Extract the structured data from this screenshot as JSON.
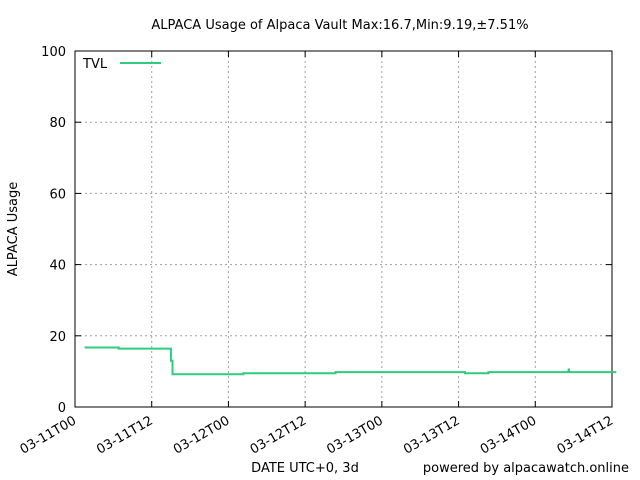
{
  "chart_data": {
    "type": "line",
    "title": "ALPACA Usage of Alpaca Vault Max:16.7,Min:9.19,±7.51%",
    "xlabel": "DATE UTC+0, 3d",
    "ylabel": "ALPACA Usage",
    "footer": "powered by alpacawatch.online",
    "ylim": [
      0,
      100
    ],
    "xlim": [
      "2021-03-11T00:00",
      "2021-03-14T12:00"
    ],
    "grid": true,
    "legend_position": "top-left",
    "x_ticks": [
      {
        "label": "03-11T00",
        "x": "2021-03-11T00:00"
      },
      {
        "label": "03-11T12",
        "x": "2021-03-11T12:00"
      },
      {
        "label": "03-12T00",
        "x": "2021-03-12T00:00"
      },
      {
        "label": "03-12T12",
        "x": "2021-03-12T12:00"
      },
      {
        "label": "03-13T00",
        "x": "2021-03-13T00:00"
      },
      {
        "label": "03-13T12",
        "x": "2021-03-13T12:00"
      },
      {
        "label": "03-14T00",
        "x": "2021-03-14T00:00"
      },
      {
        "label": "03-14T12",
        "x": "2021-03-14T12:00"
      }
    ],
    "y_ticks": [
      0,
      20,
      40,
      60,
      80,
      100
    ],
    "series": [
      {
        "name": "TVL",
        "color": "#2ecc7f",
        "points": [
          {
            "x": "2021-03-11T01:30",
            "y": 16.7
          },
          {
            "x": "2021-03-11T06:50",
            "y": 16.7
          },
          {
            "x": "2021-03-11T06:50",
            "y": 16.4
          },
          {
            "x": "2021-03-11T15:00",
            "y": 16.4
          },
          {
            "x": "2021-03-11T15:00",
            "y": 13.0
          },
          {
            "x": "2021-03-11T15:15",
            "y": 13.0
          },
          {
            "x": "2021-03-11T15:15",
            "y": 9.19
          },
          {
            "x": "2021-03-12T02:20",
            "y": 9.19
          },
          {
            "x": "2021-03-12T02:20",
            "y": 9.5
          },
          {
            "x": "2021-03-12T16:45",
            "y": 9.5
          },
          {
            "x": "2021-03-12T16:45",
            "y": 9.8
          },
          {
            "x": "2021-03-13T13:00",
            "y": 9.8
          },
          {
            "x": "2021-03-13T13:00",
            "y": 9.5
          },
          {
            "x": "2021-03-13T16:40",
            "y": 9.5
          },
          {
            "x": "2021-03-13T16:40",
            "y": 9.8
          },
          {
            "x": "2021-03-14T05:10",
            "y": 9.8
          },
          {
            "x": "2021-03-14T05:15",
            "y": 10.8
          },
          {
            "x": "2021-03-14T05:20",
            "y": 9.8
          },
          {
            "x": "2021-03-14T12:40",
            "y": 9.8
          }
        ]
      }
    ]
  }
}
